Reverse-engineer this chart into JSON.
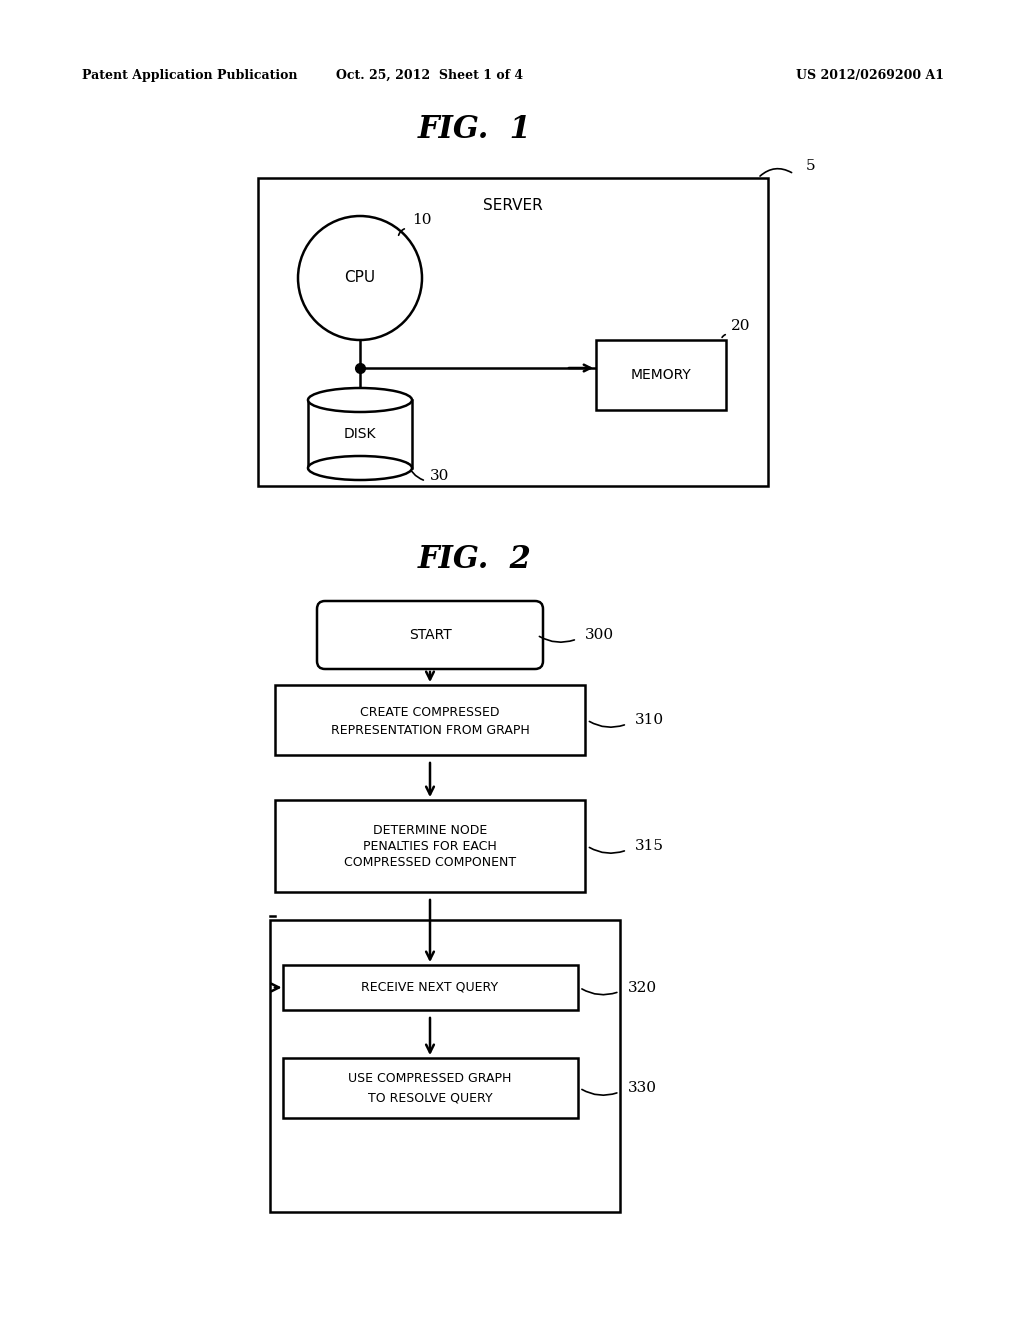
{
  "fig_width": 10.24,
  "fig_height": 13.2,
  "bg_color": "#ffffff",
  "header_left": "Patent Application Publication",
  "header_mid": "Oct. 25, 2012  Sheet 1 of 4",
  "header_right": "US 2012/0269200 A1",
  "fig1_title": "FIG.  1",
  "fig2_title": "FIG.  2",
  "server_label": "SERVER",
  "server_ref": "5",
  "cpu_label": "CPU",
  "cpu_ref": "10",
  "memory_label": "MEMORY",
  "memory_ref": "20",
  "disk_label": "DISK",
  "disk_ref": "30",
  "start_label": "START",
  "start_ref": "300",
  "box1_line1": "CREATE COMPRESSED",
  "box1_line2": "REPRESENTATION FROM GRAPH",
  "box1_ref": "310",
  "box2_line1": "DETERMINE NODE",
  "box2_line2": "PENALTIES FOR EACH",
  "box2_line3": "COMPRESSED COMPONENT",
  "box2_ref": "315",
  "box3_label": "RECEIVE NEXT QUERY",
  "box3_ref": "320",
  "box4_line1": "USE COMPRESSED GRAPH",
  "box4_line2": "TO RESOLVE QUERY",
  "box4_ref": "330"
}
